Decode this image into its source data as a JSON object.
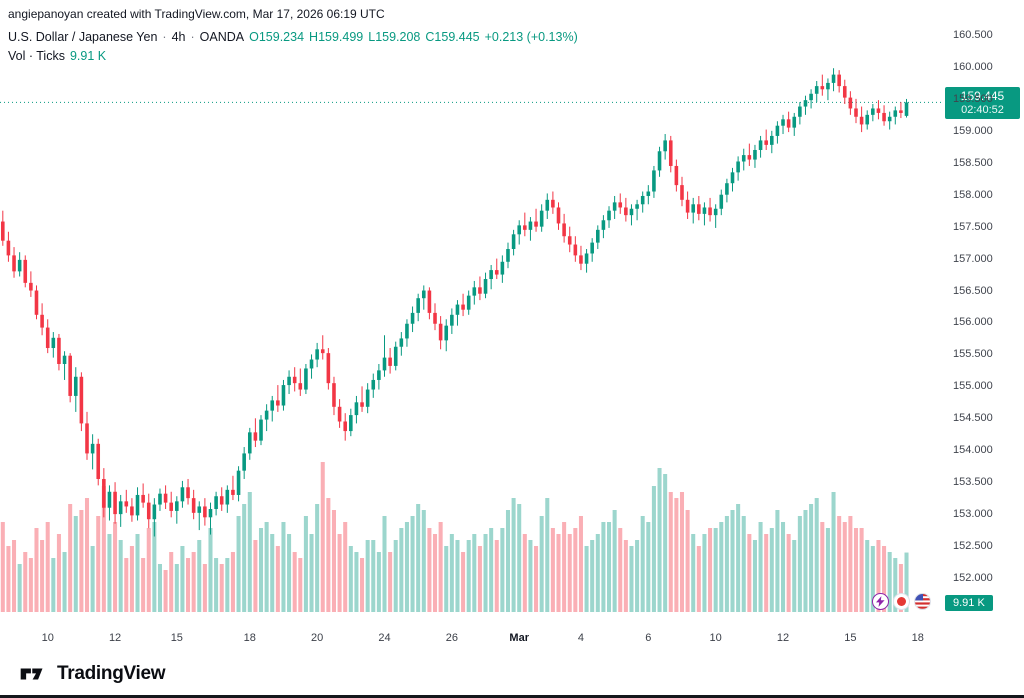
{
  "header": {
    "attribution": "angiepanoyan created with TradingView.com, Mar 17, 2026 06:19 UTC"
  },
  "legend": {
    "symbol": "U.S. Dollar / Japanese Yen",
    "sep": "·",
    "interval": "4h",
    "exchange": "OANDA",
    "ohlc": [
      {
        "k": "O",
        "v": "159.234"
      },
      {
        "k": "H",
        "v": "159.499"
      },
      {
        "k": "L",
        "v": "159.208"
      },
      {
        "k": "C",
        "v": "159.445"
      }
    ],
    "change": "+0.213 (+0.13%)",
    "vol_label": "Vol · Ticks",
    "vol_value": "9.91 K"
  },
  "price_badge": {
    "price": "159.445",
    "countdown": "02:40:52"
  },
  "volume_badge": "9.91 K",
  "price_scale": {
    "labels": [
      "160.500",
      "160.000",
      "159.500",
      "159.000",
      "158.500",
      "158.000",
      "157.500",
      "157.000",
      "156.500",
      "156.000",
      "155.500",
      "155.000",
      "154.500",
      "154.000",
      "153.500",
      "153.000",
      "152.500",
      "152.000"
    ]
  },
  "time_scale": {
    "ticks": [
      {
        "label": "10",
        "i": 8
      },
      {
        "label": "12",
        "i": 20
      },
      {
        "label": "15",
        "i": 31
      },
      {
        "label": "18",
        "i": 44
      },
      {
        "label": "20",
        "i": 56
      },
      {
        "label": "24",
        "i": 68
      },
      {
        "label": "26",
        "i": 80
      },
      {
        "label": "Mar",
        "i": 92,
        "major": true
      },
      {
        "label": "4",
        "i": 103
      },
      {
        "label": "6",
        "i": 115
      },
      {
        "label": "10",
        "i": 127
      },
      {
        "label": "12",
        "i": 139
      },
      {
        "label": "15",
        "i": 151
      },
      {
        "label": "18",
        "i": 163
      }
    ]
  },
  "footer": {
    "brand": "TradingView"
  },
  "chart_data": {
    "type": "candlestick",
    "title": "U.S. Dollar / Japanese Yen · 4h · OANDA",
    "indicator": "Vol · Ticks",
    "last_price": 159.445,
    "last_change": "+0.213 (+0.13%)",
    "price_axis": {
      "min": 152.0,
      "max": 160.5,
      "step": 0.5
    },
    "colors": {
      "up": "#089981",
      "down": "#f23645",
      "vol_up": "rgba(8,153,129,0.4)",
      "vol_down": "rgba(242,54,69,0.4)"
    },
    "slots": 168,
    "candles_format": [
      "open",
      "high",
      "low",
      "close",
      "volume_k"
    ],
    "candles": [
      [
        157.58,
        157.75,
        157.2,
        157.28,
        15
      ],
      [
        157.28,
        157.42,
        156.95,
        157.05,
        11
      ],
      [
        157.05,
        157.18,
        156.7,
        156.8,
        12
      ],
      [
        156.8,
        157.1,
        156.72,
        156.98,
        8
      ],
      [
        156.98,
        157.05,
        156.55,
        156.62,
        10
      ],
      [
        156.62,
        156.8,
        156.4,
        156.5,
        9
      ],
      [
        156.5,
        156.58,
        156.05,
        156.12,
        14
      ],
      [
        156.12,
        156.3,
        155.8,
        155.92,
        12
      ],
      [
        155.92,
        156.05,
        155.52,
        155.6,
        15
      ],
      [
        155.6,
        155.85,
        155.45,
        155.76,
        9
      ],
      [
        155.76,
        155.82,
        155.25,
        155.35,
        13
      ],
      [
        155.35,
        155.55,
        155.1,
        155.48,
        10
      ],
      [
        155.48,
        155.52,
        154.75,
        154.85,
        18
      ],
      [
        154.85,
        155.3,
        154.6,
        155.15,
        16
      ],
      [
        155.15,
        155.22,
        154.3,
        154.42,
        17
      ],
      [
        154.42,
        154.6,
        153.85,
        153.95,
        19
      ],
      [
        153.95,
        154.25,
        153.7,
        154.1,
        11
      ],
      [
        154.1,
        154.18,
        153.45,
        153.55,
        16
      ],
      [
        153.55,
        153.72,
        152.95,
        153.1,
        21
      ],
      [
        153.1,
        153.45,
        152.9,
        153.35,
        13
      ],
      [
        153.35,
        153.5,
        152.85,
        153.0,
        15
      ],
      [
        153.0,
        153.3,
        152.8,
        153.2,
        12
      ],
      [
        153.2,
        153.38,
        153.02,
        153.12,
        9
      ],
      [
        153.12,
        153.25,
        152.88,
        152.98,
        11
      ],
      [
        152.98,
        153.42,
        152.9,
        153.3,
        13
      ],
      [
        153.3,
        153.48,
        153.1,
        153.18,
        9
      ],
      [
        153.18,
        153.32,
        152.78,
        152.92,
        14
      ],
      [
        152.92,
        153.25,
        152.65,
        153.15,
        15
      ],
      [
        153.15,
        153.4,
        153.05,
        153.32,
        8
      ],
      [
        153.32,
        153.45,
        153.08,
        153.18,
        7
      ],
      [
        153.18,
        153.35,
        152.95,
        153.05,
        10
      ],
      [
        153.05,
        153.28,
        152.85,
        153.2,
        8
      ],
      [
        153.2,
        153.52,
        153.1,
        153.42,
        11
      ],
      [
        153.42,
        153.55,
        153.15,
        153.25,
        9
      ],
      [
        153.25,
        153.38,
        152.92,
        153.02,
        10
      ],
      [
        153.02,
        153.2,
        152.75,
        153.12,
        12
      ],
      [
        153.12,
        153.25,
        152.82,
        152.95,
        8
      ],
      [
        152.95,
        153.18,
        152.68,
        153.08,
        14
      ],
      [
        153.08,
        153.35,
        152.98,
        153.28,
        9
      ],
      [
        153.28,
        153.42,
        153.05,
        153.15,
        8
      ],
      [
        153.15,
        153.45,
        153.02,
        153.38,
        9
      ],
      [
        153.38,
        153.6,
        153.22,
        153.3,
        10
      ],
      [
        153.3,
        153.75,
        153.2,
        153.68,
        16
      ],
      [
        153.68,
        154.05,
        153.55,
        153.95,
        18
      ],
      [
        153.95,
        154.35,
        153.85,
        154.28,
        20
      ],
      [
        154.28,
        154.5,
        154.05,
        154.15,
        12
      ],
      [
        154.15,
        154.55,
        154.08,
        154.48,
        14
      ],
      [
        154.48,
        154.72,
        154.3,
        154.62,
        15
      ],
      [
        154.62,
        154.85,
        154.45,
        154.78,
        13
      ],
      [
        154.78,
        155.02,
        154.6,
        154.7,
        11
      ],
      [
        154.7,
        155.1,
        154.62,
        155.02,
        15
      ],
      [
        155.02,
        155.25,
        154.88,
        155.15,
        13
      ],
      [
        155.15,
        155.3,
        154.92,
        155.05,
        10
      ],
      [
        155.05,
        155.28,
        154.85,
        154.95,
        9
      ],
      [
        154.95,
        155.35,
        154.88,
        155.28,
        16
      ],
      [
        155.28,
        155.5,
        155.12,
        155.42,
        13
      ],
      [
        155.42,
        155.68,
        155.3,
        155.58,
        18
      ],
      [
        155.58,
        155.8,
        155.42,
        155.52,
        25
      ],
      [
        155.52,
        155.6,
        154.95,
        155.05,
        19
      ],
      [
        155.05,
        155.15,
        154.55,
        154.68,
        17
      ],
      [
        154.68,
        154.8,
        154.35,
        154.45,
        13
      ],
      [
        154.45,
        154.58,
        154.15,
        154.3,
        15
      ],
      [
        154.3,
        154.65,
        154.22,
        154.55,
        11
      ],
      [
        154.55,
        154.85,
        154.42,
        154.75,
        10
      ],
      [
        154.75,
        155.0,
        154.6,
        154.68,
        9
      ],
      [
        154.68,
        155.05,
        154.58,
        154.95,
        12
      ],
      [
        154.95,
        155.2,
        154.82,
        155.1,
        12
      ],
      [
        155.1,
        155.35,
        154.95,
        155.25,
        10
      ],
      [
        155.25,
        155.8,
        155.15,
        155.45,
        16
      ],
      [
        155.45,
        155.6,
        155.2,
        155.32,
        10
      ],
      [
        155.32,
        155.7,
        155.25,
        155.62,
        12
      ],
      [
        155.62,
        155.85,
        155.48,
        155.75,
        14
      ],
      [
        155.75,
        156.05,
        155.62,
        155.98,
        15
      ],
      [
        155.98,
        156.25,
        155.85,
        156.15,
        16
      ],
      [
        156.15,
        156.45,
        156.02,
        156.38,
        18
      ],
      [
        156.38,
        156.58,
        156.2,
        156.5,
        17
      ],
      [
        156.5,
        156.55,
        156.05,
        156.15,
        14
      ],
      [
        156.15,
        156.3,
        155.88,
        155.98,
        13
      ],
      [
        155.98,
        156.1,
        155.58,
        155.72,
        15
      ],
      [
        155.72,
        156.05,
        155.55,
        155.95,
        11
      ],
      [
        155.95,
        156.22,
        155.82,
        156.12,
        13
      ],
      [
        156.12,
        156.35,
        155.95,
        156.28,
        12
      ],
      [
        156.28,
        156.45,
        156.1,
        156.2,
        10
      ],
      [
        156.2,
        156.5,
        156.12,
        156.42,
        12
      ],
      [
        156.42,
        156.65,
        156.28,
        156.55,
        13
      ],
      [
        156.55,
        156.72,
        156.35,
        156.45,
        11
      ],
      [
        156.45,
        156.78,
        156.38,
        156.68,
        13
      ],
      [
        156.68,
        156.9,
        156.52,
        156.82,
        14
      ],
      [
        156.82,
        157.0,
        156.68,
        156.75,
        12
      ],
      [
        156.75,
        157.05,
        156.62,
        156.95,
        14
      ],
      [
        156.95,
        157.25,
        156.85,
        157.15,
        17
      ],
      [
        157.15,
        157.45,
        157.05,
        157.38,
        19
      ],
      [
        157.38,
        157.6,
        157.22,
        157.52,
        18
      ],
      [
        157.52,
        157.72,
        157.35,
        157.45,
        13
      ],
      [
        157.45,
        157.65,
        157.28,
        157.58,
        12
      ],
      [
        157.58,
        157.78,
        157.42,
        157.5,
        11
      ],
      [
        157.5,
        157.85,
        157.42,
        157.75,
        16
      ],
      [
        157.75,
        158.02,
        157.62,
        157.92,
        19
      ],
      [
        157.92,
        158.05,
        157.7,
        157.8,
        14
      ],
      [
        157.8,
        157.88,
        157.45,
        157.55,
        13
      ],
      [
        157.55,
        157.7,
        157.25,
        157.35,
        15
      ],
      [
        157.35,
        157.5,
        157.1,
        157.22,
        13
      ],
      [
        157.22,
        157.35,
        156.95,
        157.05,
        14
      ],
      [
        157.05,
        157.2,
        156.82,
        156.92,
        16
      ],
      [
        156.92,
        157.15,
        156.78,
        157.08,
        11
      ],
      [
        157.08,
        157.32,
        156.95,
        157.25,
        12
      ],
      [
        157.25,
        157.52,
        157.15,
        157.45,
        13
      ],
      [
        157.45,
        157.68,
        157.32,
        157.6,
        15
      ],
      [
        157.6,
        157.82,
        157.48,
        157.75,
        15
      ],
      [
        157.75,
        157.98,
        157.62,
        157.88,
        17
      ],
      [
        157.88,
        158.02,
        157.7,
        157.8,
        14
      ],
      [
        157.8,
        157.95,
        157.58,
        157.68,
        12
      ],
      [
        157.68,
        157.85,
        157.52,
        157.78,
        11
      ],
      [
        157.78,
        157.92,
        157.6,
        157.85,
        12
      ],
      [
        157.85,
        158.05,
        157.72,
        157.98,
        16
      ],
      [
        157.98,
        158.15,
        157.85,
        158.05,
        15
      ],
      [
        158.05,
        158.45,
        157.95,
        158.38,
        21
      ],
      [
        158.38,
        158.75,
        158.28,
        158.68,
        24
      ],
      [
        158.68,
        158.95,
        158.55,
        158.85,
        23
      ],
      [
        158.85,
        158.92,
        158.35,
        158.45,
        20
      ],
      [
        158.45,
        158.55,
        158.05,
        158.15,
        19
      ],
      [
        158.15,
        158.28,
        157.82,
        157.92,
        20
      ],
      [
        157.92,
        158.05,
        157.62,
        157.72,
        17
      ],
      [
        157.72,
        157.95,
        157.55,
        157.85,
        13
      ],
      [
        157.85,
        157.98,
        157.6,
        157.7,
        11
      ],
      [
        157.7,
        157.88,
        157.52,
        157.8,
        13
      ],
      [
        157.8,
        157.95,
        157.58,
        157.68,
        14
      ],
      [
        157.68,
        157.85,
        157.48,
        157.78,
        14
      ],
      [
        157.78,
        158.08,
        157.68,
        158.0,
        15
      ],
      [
        158.0,
        158.25,
        157.88,
        158.18,
        16
      ],
      [
        158.18,
        158.42,
        158.05,
        158.35,
        17
      ],
      [
        158.35,
        158.6,
        158.22,
        158.52,
        18
      ],
      [
        158.52,
        158.72,
        158.38,
        158.62,
        16
      ],
      [
        158.62,
        158.8,
        158.45,
        158.55,
        13
      ],
      [
        158.55,
        158.78,
        158.42,
        158.7,
        12
      ],
      [
        158.7,
        158.92,
        158.58,
        158.85,
        15
      ],
      [
        158.85,
        159.02,
        158.7,
        158.78,
        13
      ],
      [
        158.78,
        159.0,
        158.65,
        158.92,
        14
      ],
      [
        158.92,
        159.15,
        158.8,
        159.08,
        17
      ],
      [
        159.08,
        159.25,
        158.95,
        159.18,
        15
      ],
      [
        159.18,
        159.3,
        158.98,
        159.05,
        13
      ],
      [
        159.05,
        159.28,
        158.92,
        159.22,
        12
      ],
      [
        159.22,
        159.45,
        159.1,
        159.38,
        16
      ],
      [
        159.38,
        159.55,
        159.25,
        159.48,
        17
      ],
      [
        159.48,
        159.65,
        159.35,
        159.58,
        18
      ],
      [
        159.58,
        159.78,
        159.45,
        159.7,
        19
      ],
      [
        159.7,
        159.88,
        159.55,
        159.65,
        15
      ],
      [
        159.65,
        159.82,
        159.48,
        159.75,
        14
      ],
      [
        159.75,
        159.98,
        159.62,
        159.88,
        20
      ],
      [
        159.88,
        159.95,
        159.6,
        159.7,
        16
      ],
      [
        159.7,
        159.8,
        159.42,
        159.52,
        15
      ],
      [
        159.52,
        159.62,
        159.25,
        159.35,
        16
      ],
      [
        159.35,
        159.5,
        159.12,
        159.22,
        14
      ],
      [
        159.22,
        159.38,
        158.98,
        159.1,
        14
      ],
      [
        159.1,
        159.32,
        159.02,
        159.25,
        12
      ],
      [
        159.25,
        159.42,
        159.15,
        159.35,
        11
      ],
      [
        159.35,
        159.48,
        159.18,
        159.28,
        12
      ],
      [
        159.28,
        159.4,
        159.08,
        159.15,
        11
      ],
      [
        159.15,
        159.3,
        159.02,
        159.22,
        10
      ],
      [
        159.22,
        159.38,
        159.1,
        159.32,
        9
      ],
      [
        159.32,
        159.45,
        159.2,
        159.28,
        8
      ],
      [
        159.234,
        159.499,
        159.208,
        159.445,
        9.91
      ]
    ]
  }
}
